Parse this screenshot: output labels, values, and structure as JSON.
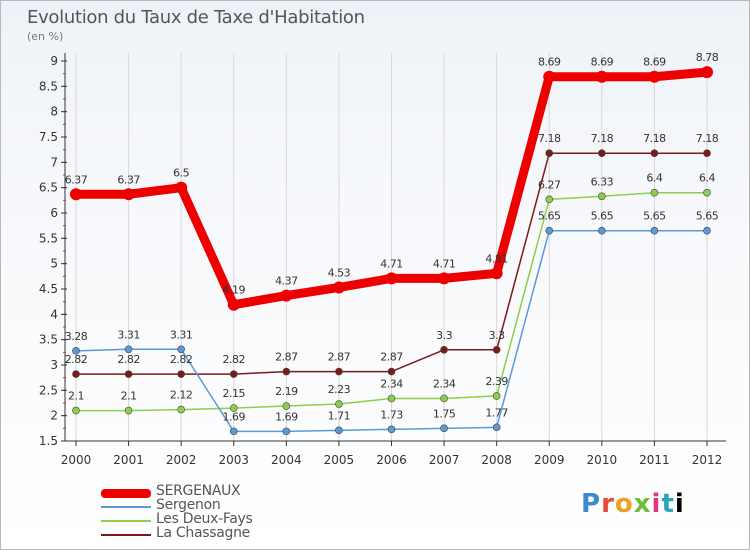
{
  "title": "Evolution du Taux de Taxe d'Habitation",
  "unit_label": "(en %)",
  "logo": "Proxiti",
  "chart_data": {
    "type": "line",
    "x": [
      2000,
      2001,
      2002,
      2003,
      2004,
      2005,
      2006,
      2007,
      2008,
      2009,
      2010,
      2011,
      2012
    ],
    "x_tick_labels": [
      "2000",
      "2001",
      "2002",
      "2003",
      "2004",
      "2005",
      "2006",
      "2007",
      "2008",
      "2009",
      "2010",
      "2011",
      "2012"
    ],
    "ylim": [
      1.5,
      9
    ],
    "y_ticks": [
      1.5,
      2,
      2.5,
      3,
      3.5,
      4,
      4.5,
      5,
      5.5,
      6,
      6.5,
      7,
      7.5,
      8,
      8.5,
      9
    ],
    "y_tick_labels": [
      "1.5",
      "2",
      "2.5",
      "3",
      "3.5",
      "4",
      "4.5",
      "5",
      "5.5",
      "6",
      "6.5",
      "7",
      "7.5",
      "8",
      "8.5",
      "9"
    ],
    "grid": "vertical",
    "legend_position": "bottom-left",
    "series": [
      {
        "name": "SERGENAUX",
        "color": "#ee0000",
        "values": [
          6.37,
          6.37,
          6.5,
          4.19,
          4.37,
          4.53,
          4.71,
          4.71,
          4.81,
          8.69,
          8.69,
          8.69,
          8.78
        ],
        "labels": [
          "6.37",
          "6.37",
          "6.5",
          "4.19",
          "4.37",
          "4.53",
          "4.71",
          "4.71",
          "4.81",
          "8.69",
          "8.69",
          "8.69",
          "8.78"
        ]
      },
      {
        "name": "Sergenon",
        "color": "#5b9ad6",
        "values": [
          3.28,
          3.31,
          3.31,
          1.69,
          1.69,
          1.71,
          1.73,
          1.75,
          1.77,
          5.65,
          5.65,
          5.65,
          5.65
        ],
        "labels": [
          "3.28",
          "3.31",
          "3.31",
          "1.69",
          "1.69",
          "1.71",
          "1.73",
          "1.75",
          "1.77",
          "5.65",
          "5.65",
          "5.65",
          "5.65"
        ]
      },
      {
        "name": "Les Deux-Fays",
        "color": "#8ad04a",
        "values": [
          2.1,
          2.1,
          2.12,
          2.15,
          2.19,
          2.23,
          2.34,
          2.34,
          2.39,
          6.27,
          6.33,
          6.4,
          6.4
        ],
        "labels": [
          "2.1",
          "2.1",
          "2.12",
          "2.15",
          "2.19",
          "2.23",
          "2.34",
          "2.34",
          "2.39",
          "6.27",
          "6.33",
          "6.4",
          "6.4"
        ]
      },
      {
        "name": "La Chassagne",
        "color": "#7a1a1a",
        "values": [
          2.82,
          2.82,
          2.82,
          2.82,
          2.87,
          2.87,
          2.87,
          3.3,
          3.3,
          7.18,
          7.18,
          7.18,
          7.18
        ],
        "labels": [
          "2.82",
          "2.82",
          "2.82",
          "2.82",
          "2.87",
          "2.87",
          "2.87",
          "3.3",
          "3.3",
          "7.18",
          "7.18",
          "7.18",
          "7.18"
        ]
      }
    ]
  }
}
